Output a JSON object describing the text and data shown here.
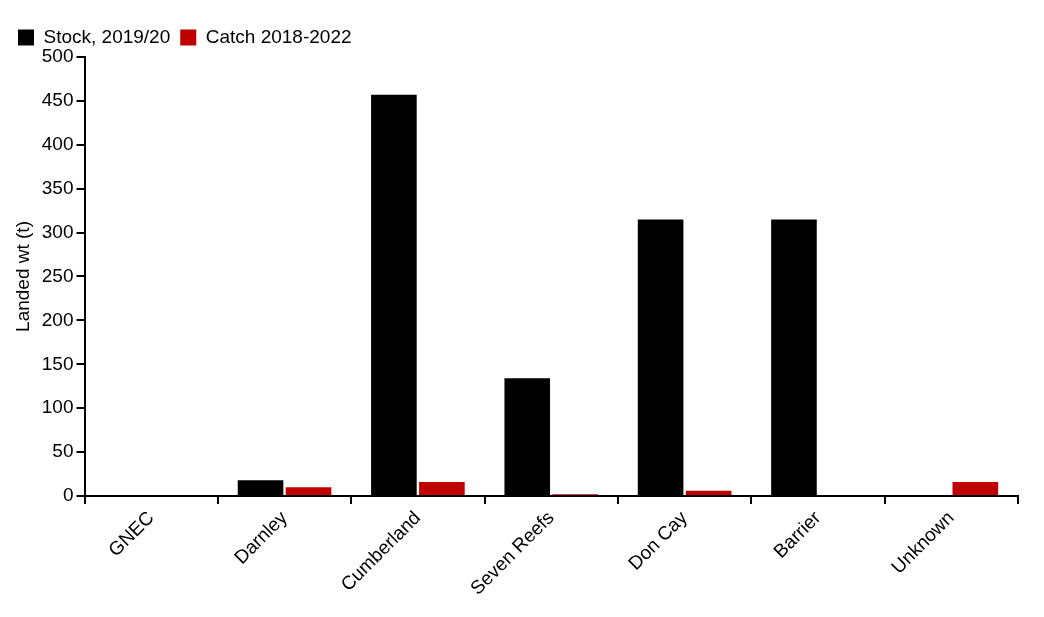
{
  "chart_data": {
    "type": "bar",
    "ylabel": "Landed wt (t)",
    "categories": [
      "GNEC",
      "Darnley",
      "Cumberland",
      "Seven Reefs",
      "Don Cay",
      "Barrier",
      "Unknown"
    ],
    "series": [
      {
        "name": "Stock, 2019/20",
        "color": "#000000",
        "values": [
          0,
          18,
          457,
          134,
          315,
          315,
          0
        ]
      },
      {
        "name": "Catch 2018-2022",
        "color": "#c00000",
        "values": [
          0,
          10,
          16,
          2,
          6,
          0,
          16
        ]
      }
    ],
    "ylim": [
      0,
      500
    ],
    "yticks": [
      0,
      50,
      100,
      150,
      200,
      250,
      300,
      350,
      400,
      450,
      500
    ],
    "grid": false,
    "legend": "top left"
  }
}
